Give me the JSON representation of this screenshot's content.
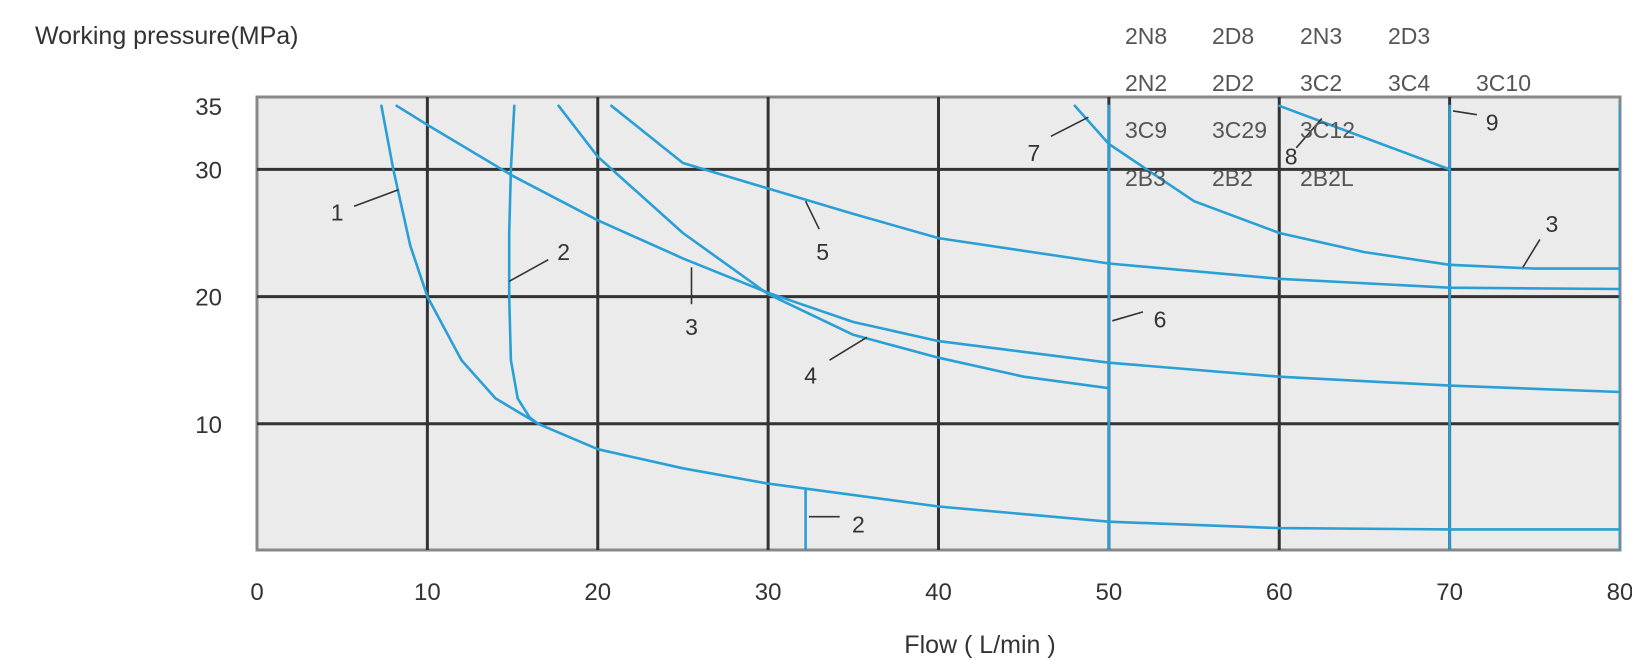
{
  "chart_data": {
    "type": "line",
    "title": "",
    "ylabel": "Working pressure(MPa)",
    "xlabel": "Flow ( L/min )",
    "xlim": [
      0,
      80
    ],
    "ylim": [
      0,
      35.5
    ],
    "grid": true,
    "x_ticks": [
      "0",
      "10",
      "20",
      "30",
      "40",
      "50",
      "60",
      "70",
      "80"
    ],
    "y_ticks": [
      "10",
      "20",
      "30",
      "35"
    ],
    "y_tick_values": [
      10,
      20,
      30,
      35
    ],
    "colors": {
      "curve": "#2a9fd6",
      "grid": "#333333",
      "frame": "#888888",
      "plot_bg": "#ebebeb"
    },
    "model_label_rows": [
      [
        "2N8",
        "2D8",
        "2N3",
        "2D3"
      ],
      [
        "2N2",
        "2D2",
        "3C2",
        "3C4",
        "3C10"
      ],
      [
        "3C9",
        "3C29",
        "3C12"
      ],
      [
        "2B3",
        "2B2",
        "2B2L"
      ]
    ],
    "series": [
      {
        "id": "c1",
        "label": "1",
        "points": [
          [
            7.3,
            35
          ],
          [
            8,
            30
          ],
          [
            9,
            24
          ],
          [
            10,
            20
          ],
          [
            12,
            15
          ],
          [
            14,
            12
          ],
          [
            16.5,
            10
          ],
          [
            20,
            8
          ],
          [
            25,
            6.5
          ],
          [
            30,
            5.3
          ],
          [
            40,
            3.5
          ],
          [
            50,
            2.3
          ],
          [
            60,
            1.8
          ],
          [
            70,
            1.7
          ],
          [
            80,
            1.7
          ]
        ]
      },
      {
        "id": "c2a",
        "label": "2",
        "points": [
          [
            15.1,
            35
          ],
          [
            14.9,
            30
          ],
          [
            14.8,
            25
          ],
          [
            14.8,
            20
          ],
          [
            14.9,
            15
          ],
          [
            15.3,
            12
          ],
          [
            16,
            10.5
          ],
          [
            16.5,
            10
          ]
        ]
      },
      {
        "id": "c2b",
        "label": "2",
        "points": [
          [
            32.2,
            4.8
          ],
          [
            32.2,
            0
          ]
        ]
      },
      {
        "id": "c3a",
        "label": "3",
        "points": [
          [
            8.2,
            35
          ],
          [
            10,
            33.5
          ],
          [
            15,
            29.5
          ],
          [
            20,
            26
          ],
          [
            25,
            23
          ],
          [
            30,
            20.3
          ],
          [
            35,
            18
          ],
          [
            40,
            16.5
          ],
          [
            50,
            14.8
          ],
          [
            60,
            13.7
          ],
          [
            70,
            13
          ],
          [
            80,
            12.5
          ]
        ]
      },
      {
        "id": "c3b",
        "label": "3",
        "points": [
          [
            48,
            35
          ],
          [
            50,
            32
          ],
          [
            55,
            27.5
          ],
          [
            60,
            25
          ],
          [
            65,
            23.5
          ],
          [
            70,
            22.5
          ],
          [
            75,
            22.2
          ],
          [
            80,
            22.2
          ]
        ]
      },
      {
        "id": "c4",
        "label": "4",
        "points": [
          [
            17.7,
            35
          ],
          [
            20,
            31
          ],
          [
            25,
            25
          ],
          [
            30,
            20.2
          ],
          [
            35,
            17
          ],
          [
            40,
            15.2
          ],
          [
            45,
            13.7
          ],
          [
            50,
            12.8
          ]
        ]
      },
      {
        "id": "c5",
        "label": "5",
        "points": [
          [
            20.8,
            35
          ],
          [
            25,
            30.5
          ],
          [
            30,
            28.5
          ],
          [
            35,
            26.5
          ],
          [
            40,
            24.6
          ],
          [
            50,
            22.6
          ],
          [
            60,
            21.4
          ],
          [
            70,
            20.7
          ],
          [
            80,
            20.6
          ]
        ]
      },
      {
        "id": "c6",
        "label": "6",
        "points": [
          [
            50,
            35
          ],
          [
            50,
            0
          ]
        ]
      },
      {
        "id": "c8",
        "label": "8",
        "points": [
          [
            60,
            35
          ],
          [
            65,
            32.5
          ],
          [
            70,
            30
          ]
        ]
      },
      {
        "id": "c9",
        "label": "9",
        "points": [
          [
            70,
            35
          ],
          [
            70,
            0
          ]
        ]
      },
      {
        "id": "c10",
        "label": "",
        "points": [
          [
            80,
            35
          ],
          [
            80,
            0
          ]
        ]
      }
    ],
    "annotations": [
      {
        "text": "1",
        "leader": [
          [
            8.3,
            28.4
          ],
          [
            5.7,
            27.1
          ]
        ],
        "text_at": [
          4.7,
          26.6
        ]
      },
      {
        "text": "2",
        "leader": [
          [
            14.8,
            21.2
          ],
          [
            17.1,
            22.9
          ]
        ],
        "text_at": [
          18.0,
          23.5
        ]
      },
      {
        "text": "3",
        "leader": [
          [
            25.5,
            22.3
          ],
          [
            25.5,
            19.4
          ]
        ],
        "text_at": [
          25.5,
          17.6
        ]
      },
      {
        "text": "4",
        "leader": [
          [
            35.8,
            16.8
          ],
          [
            33.6,
            15.0
          ]
        ],
        "text_at": [
          32.5,
          13.8
        ]
      },
      {
        "text": "5",
        "leader": [
          [
            32.2,
            27.5
          ],
          [
            33.0,
            25.3
          ]
        ],
        "text_at": [
          33.2,
          23.5
        ]
      },
      {
        "text": "2",
        "leader": [
          [
            32.4,
            2.7
          ],
          [
            34.2,
            2.7
          ]
        ],
        "text_at": [
          35.3,
          2.1
        ]
      },
      {
        "text": "3",
        "leader": [
          [
            74.3,
            22.3
          ],
          [
            75.3,
            24.5
          ]
        ],
        "text_at": [
          76.0,
          25.7
        ]
      },
      {
        "text": "6",
        "leader": [
          [
            50.2,
            18.1
          ],
          [
            52.0,
            18.8
          ]
        ],
        "text_at": [
          53.0,
          18.2
        ]
      },
      {
        "text": "7",
        "leader": [
          [
            48.8,
            34.1
          ],
          [
            46.6,
            32.6
          ]
        ],
        "text_at": [
          45.6,
          31.3
        ]
      },
      {
        "text": "8",
        "leader": [
          [
            62.5,
            34.0
          ],
          [
            61.0,
            31.7
          ]
        ],
        "text_at": [
          60.7,
          31.0
        ]
      },
      {
        "text": "9",
        "leader": [
          [
            70.2,
            34.6
          ],
          [
            71.6,
            34.3
          ]
        ],
        "text_at": [
          72.5,
          33.7
        ]
      }
    ]
  }
}
